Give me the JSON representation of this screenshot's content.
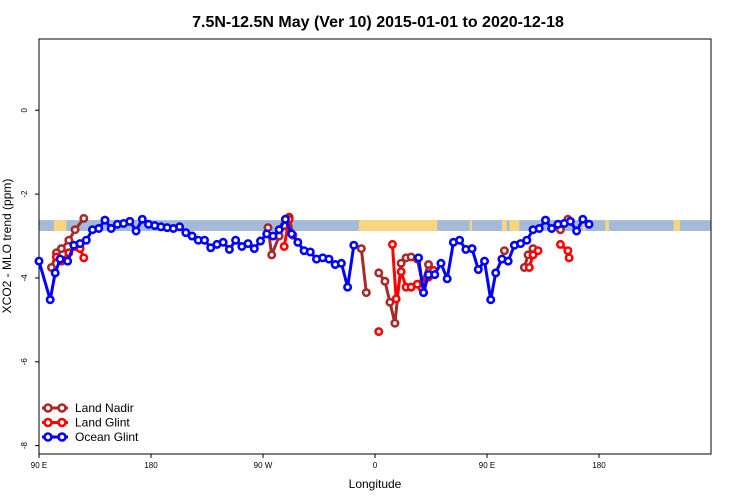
{
  "chart_data": {
    "type": "line",
    "title": "7.5N-12.5N May (Ver 10)   2015-01-01 to 2020-12-18",
    "xlabel": "Longitude",
    "ylabel": "XCO2 - MLO trend (ppm)",
    "xlim": [
      0,
      540
    ],
    "ylim": [
      -8.2,
      1.7
    ],
    "x_ticks": [
      {
        "value": 0,
        "label": "90 E"
      },
      {
        "value": 90,
        "label": "180"
      },
      {
        "value": 180,
        "label": "90 W"
      },
      {
        "value": 270,
        "label": "0"
      },
      {
        "value": 360,
        "label": "90 E"
      },
      {
        "value": 450,
        "label": "180"
      }
    ],
    "y_ticks": [
      {
        "value": 0,
        "label": "0"
      },
      {
        "value": -2,
        "label": "-2"
      },
      {
        "value": -4,
        "label": "-4"
      },
      {
        "value": -6,
        "label": "-6"
      },
      {
        "value": -8,
        "label": "-8"
      }
    ],
    "grid": false,
    "legend_position": "bottom-left",
    "land_band": {
      "y_range": [
        -2.62,
        -2.88
      ],
      "ocean_color": "#a3bbd9",
      "land_color": "#f8d57e",
      "land_segments": [
        [
          12,
          22
        ],
        [
          257,
          320
        ],
        [
          346,
          348
        ],
        [
          372,
          376
        ],
        [
          378,
          386
        ],
        [
          437,
          439
        ],
        [
          455,
          458
        ],
        [
          510,
          515
        ]
      ]
    },
    "series": [
      {
        "name": "Land Nadir",
        "color": "#a52a2a",
        "segments": [
          [
            [
              10,
              -3.75
            ],
            [
              14,
              -3.4
            ],
            [
              18,
              -3.3
            ],
            [
              24,
              -3.1
            ],
            [
              29,
              -2.85
            ],
            [
              36,
              -2.58
            ]
          ],
          [
            [
              184,
              -2.8
            ],
            [
              187,
              -3.45
            ],
            [
              193,
              -3.0
            ],
            [
              197,
              -2.75
            ],
            [
              201,
              -2.55
            ],
            [
              204,
              -2.98
            ]
          ],
          [
            [
              259,
              -3.3
            ],
            [
              263,
              -4.35
            ]
          ],
          [
            [
              273,
              -3.88
            ],
            [
              278,
              -4.08
            ],
            [
              282,
              -4.58
            ],
            [
              286,
              -5.08
            ],
            [
              291,
              -3.65
            ],
            [
              295,
              -3.52
            ],
            [
              299,
              -3.5
            ],
            [
              304,
              -3.55
            ],
            [
              308,
              -4.12
            ],
            [
              313,
              -3.68
            ]
          ],
          [
            [
              374,
              -3.35
            ]
          ],
          [
            [
              390,
              -3.75
            ],
            [
              393,
              -3.45
            ],
            [
              397,
              -3.3
            ]
          ],
          [
            [
              419,
              -2.85
            ],
            [
              425,
              -2.6
            ]
          ]
        ]
      },
      {
        "name": "Land Glint",
        "color": "#ff0000",
        "segments": [
          [
            [
              14,
              -3.5
            ],
            [
              18,
              -3.6
            ],
            [
              24,
              -3.4
            ],
            [
              29,
              -3.25
            ],
            [
              33,
              -3.3
            ],
            [
              36,
              -3.52
            ]
          ],
          [
            [
              197,
              -3.25
            ],
            [
              201,
              -2.6
            ]
          ],
          [
            [
              273,
              -5.28
            ]
          ],
          [
            [
              284,
              -3.2
            ],
            [
              287,
              -4.5
            ],
            [
              291,
              -3.85
            ],
            [
              295,
              -4.22
            ],
            [
              299,
              -4.22
            ],
            [
              304,
              -4.15
            ],
            [
              308,
              -4.25
            ],
            [
              313,
              -3.98
            ],
            [
              317,
              -3.82
            ]
          ],
          [
            [
              394,
              -3.75
            ],
            [
              397,
              -3.45
            ],
            [
              401,
              -3.35
            ]
          ],
          [
            [
              419,
              -3.2
            ],
            [
              425,
              -3.35
            ],
            [
              426,
              -3.52
            ]
          ]
        ]
      },
      {
        "name": "Ocean Glint",
        "color": "#0000ff",
        "segments": [
          [
            [
              0,
              -3.6
            ],
            [
              9,
              -4.52
            ],
            [
              13,
              -3.88
            ],
            [
              17,
              -3.55
            ],
            [
              23,
              -3.6
            ],
            [
              28,
              -3.22
            ],
            [
              33,
              -3.18
            ],
            [
              38,
              -3.1
            ],
            [
              43,
              -2.85
            ],
            [
              48,
              -2.82
            ],
            [
              53,
              -2.62
            ],
            [
              58,
              -2.82
            ],
            [
              63,
              -2.72
            ],
            [
              68,
              -2.7
            ],
            [
              73,
              -2.65
            ],
            [
              78,
              -2.88
            ],
            [
              83,
              -2.6
            ],
            [
              88,
              -2.72
            ],
            [
              93,
              -2.75
            ],
            [
              98,
              -2.78
            ],
            [
              103,
              -2.8
            ],
            [
              108,
              -2.82
            ],
            [
              113,
              -2.78
            ],
            [
              118,
              -2.92
            ],
            [
              123,
              -3.0
            ],
            [
              128,
              -3.1
            ],
            [
              133,
              -3.1
            ],
            [
              138,
              -3.28
            ],
            [
              143,
              -3.2
            ],
            [
              148,
              -3.15
            ],
            [
              153,
              -3.32
            ],
            [
              158,
              -3.1
            ],
            [
              163,
              -3.25
            ],
            [
              168,
              -3.18
            ],
            [
              173,
              -3.3
            ],
            [
              178,
              -3.12
            ],
            [
              183,
              -2.95
            ],
            [
              188,
              -3.0
            ],
            [
              193,
              -2.85
            ],
            [
              198,
              -2.6
            ],
            [
              203,
              -2.95
            ],
            [
              208,
              -3.15
            ],
            [
              213,
              -3.35
            ],
            [
              218,
              -3.38
            ],
            [
              223,
              -3.55
            ],
            [
              228,
              -3.52
            ],
            [
              233,
              -3.55
            ],
            [
              238,
              -3.68
            ],
            [
              243,
              -3.65
            ],
            [
              248,
              -4.22
            ],
            [
              253,
              -3.22
            ]
          ],
          [
            [
              305,
              -3.52
            ],
            [
              309,
              -4.35
            ],
            [
              313,
              -3.92
            ],
            [
              318,
              -3.92
            ],
            [
              323,
              -3.65
            ],
            [
              328,
              -4.02
            ],
            [
              333,
              -3.15
            ],
            [
              338,
              -3.1
            ],
            [
              343,
              -3.32
            ],
            [
              348,
              -3.3
            ],
            [
              353,
              -3.8
            ],
            [
              358,
              -3.6
            ],
            [
              363,
              -4.52
            ],
            [
              367,
              -3.88
            ],
            [
              372,
              -3.55
            ],
            [
              377,
              -3.6
            ],
            [
              382,
              -3.22
            ],
            [
              387,
              -3.18
            ],
            [
              392,
              -3.1
            ],
            [
              397,
              -2.85
            ],
            [
              402,
              -2.82
            ],
            [
              407,
              -2.62
            ],
            [
              412,
              -2.82
            ],
            [
              417,
              -2.72
            ],
            [
              422,
              -2.7
            ],
            [
              427,
              -2.65
            ],
            [
              432,
              -2.88
            ],
            [
              437,
              -2.6
            ],
            [
              442,
              -2.72
            ]
          ]
        ]
      }
    ]
  }
}
